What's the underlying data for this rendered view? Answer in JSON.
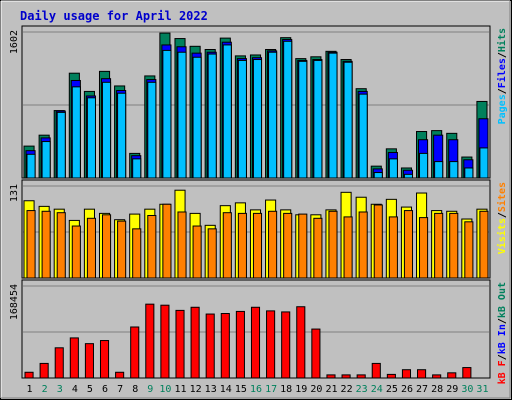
{
  "chart_data": {
    "type": "bar",
    "title": "Daily usage for April 2022",
    "categories": [
      "1",
      "2",
      "3",
      "4",
      "5",
      "6",
      "7",
      "8",
      "9",
      "10",
      "11",
      "12",
      "13",
      "14",
      "15",
      "16",
      "17",
      "18",
      "19",
      "20",
      "21",
      "22",
      "23",
      "24",
      "25",
      "26",
      "27",
      "28",
      "29",
      "30",
      "31"
    ],
    "weekend_days": [
      "2",
      "3",
      "9",
      "10",
      "16",
      "17",
      "23",
      "24",
      "30",
      "31"
    ],
    "colors": {
      "background": "#c0c0c0",
      "title": "#0000cc",
      "hits": "#00805c",
      "files": "#0000ff",
      "pages": "#00c0ff",
      "visits": "#ffff00",
      "sites": "#ff8000",
      "kbin": "#0000ff",
      "kbout": "#00805c",
      "kbf": "#ff0000",
      "weekday_label": "#000000",
      "weekend_label": "#00805c"
    },
    "panels": [
      {
        "name": "requests",
        "ymax": 1602,
        "ymax_label": "1602",
        "legend": [
          {
            "text": "Pages",
            "color": "#00c0ff"
          },
          {
            "text": "/",
            "color": "#000000"
          },
          {
            "text": "Files",
            "color": "#0000ff"
          },
          {
            "text": "/",
            "color": "#000000"
          },
          {
            "text": "Hits",
            "color": "#00805c"
          }
        ],
        "series": [
          {
            "name": "Hits",
            "values": [
              350,
              470,
              740,
              1150,
              950,
              1170,
              1010,
              270,
              1120,
              1590,
              1530,
              1445,
              1410,
              1535,
              1340,
              1350,
              1410,
              1540,
              1310,
              1330,
              1390,
              1300,
              980,
              130,
              320,
              110,
              510,
              520,
              490,
              230,
              840
            ]
          },
          {
            "name": "Files",
            "values": [
              300,
              440,
              735,
              1070,
              900,
              1090,
              960,
              245,
              1080,
              1460,
              1440,
              1370,
              1380,
              1490,
              1310,
              1320,
              1395,
              1520,
              1290,
              1300,
              1380,
              1280,
              950,
              100,
              280,
              85,
              420,
              470,
              420,
              200,
              650
            ]
          },
          {
            "name": "Pages",
            "values": [
              260,
              400,
              720,
              1000,
              880,
              1050,
              930,
              210,
              1050,
              1400,
              1380,
              1325,
              1360,
              1460,
              1290,
              1300,
              1380,
              1500,
              1280,
              1290,
              1370,
              1270,
              920,
              60,
              210,
              40,
              270,
              180,
              180,
              110,
              330
            ]
          }
        ]
      },
      {
        "name": "visits",
        "ymax": 131,
        "ymax_label": "131",
        "legend": [
          {
            "text": "Visits",
            "color": "#ffff00"
          },
          {
            "text": "/",
            "color": "#000000"
          },
          {
            "text": "Sites",
            "color": "#ff8000"
          }
        ],
        "series": [
          {
            "name": "Visits",
            "values": [
              110,
              102,
              98,
              82,
              98,
              92,
              83,
              91,
              98,
              105,
              125,
              92,
              75,
              103,
              107,
              97,
              111,
              97,
              90,
              90,
              97,
              122,
              115,
              105,
              112,
              101,
              121,
              96,
              95,
              84,
              98
            ]
          },
          {
            "name": "Sites",
            "values": [
              96,
              95,
              93,
              74,
              85,
              90,
              81,
              70,
              89,
              105,
              94,
              74,
              70,
              93,
              92,
              92,
              95,
              92,
              91,
              85,
              95,
              87,
              94,
              104,
              87,
              96,
              86,
              92,
              92,
              80,
              95
            ]
          }
        ]
      },
      {
        "name": "volume",
        "ymax": 168454,
        "ymax_label": "168454",
        "legend": [
          {
            "text": "kB F",
            "color": "#ff0000"
          },
          {
            "text": "/",
            "color": "#000000"
          },
          {
            "text": "kB In",
            "color": "#0000ff"
          },
          {
            "text": "/",
            "color": "#000000"
          },
          {
            "text": "kB Out",
            "color": "#00805c"
          }
        ],
        "series": [
          {
            "name": "kB F",
            "values": [
              10500,
              26700,
              55300,
              73400,
              62900,
              68600,
              10500,
              93400,
              135200,
              133300,
              123800,
              129500,
              117100,
              118100,
              121900,
              129500,
              122900,
              121000,
              130500,
              89600,
              5700,
              5700,
              5700,
              26700,
              6600,
              15200,
              15200,
              5700,
              9500,
              19100,
              0
            ]
          }
        ]
      }
    ]
  }
}
